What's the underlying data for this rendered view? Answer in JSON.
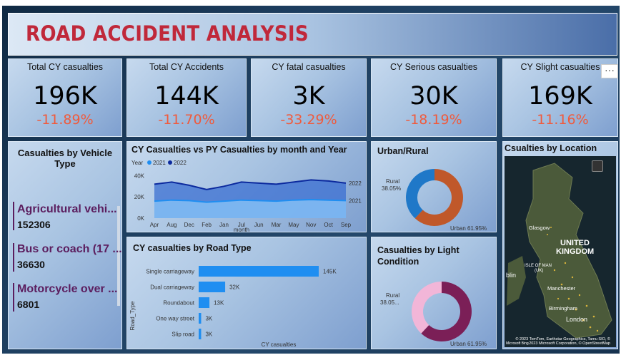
{
  "title": "ROAD ACCIDENT ANALYSIS",
  "kpis": [
    {
      "label": "Total CY casualties",
      "value": "196K",
      "change": "-11.89%"
    },
    {
      "label": "Total CY Accidents",
      "value": "144K",
      "change": "-11.70%"
    },
    {
      "label": "CY fatal casualties",
      "value": "3K",
      "change": "-33.29%"
    },
    {
      "label": "CY Serious casualties",
      "value": "30K",
      "change": "-18.19%"
    },
    {
      "label": "CY Slight casualties",
      "value": "169K",
      "change": "-11.16%"
    }
  ],
  "vehicle": {
    "title": "Casualties by Vehicle Type",
    "items": [
      {
        "name": "Agricultural vehi...",
        "value": "152306"
      },
      {
        "name": "Bus or coach (17 ...",
        "value": "36630"
      },
      {
        "name": "Motorcycle over ...",
        "value": "6801"
      }
    ]
  },
  "line": {
    "title": "CY Casualties vs PY Casualties by month and Year",
    "legend_title": "Year",
    "legend": [
      "2021",
      "2022"
    ],
    "xlabel": "month"
  },
  "urban": {
    "title": "Urban/Rural",
    "rural": "Rural\n38.05%",
    "urban": "Urban 61.95%"
  },
  "light": {
    "title": "Casualties by Light Condition",
    "rural": "Rural\n38.05...",
    "urban": "Urban 61.95%"
  },
  "road": {
    "title": "CY casualties by Road Type",
    "ylabel": "Road_Type",
    "xlabel": "CY casualties"
  },
  "map": {
    "title": "Csualties by Location",
    "labels": [
      "UNITED",
      "KINGDOM",
      "Glasgow",
      "ISLE OF MAN",
      "(UK)",
      "Manchester",
      "Birmingham",
      "London",
      "blin"
    ],
    "copyright": "© 2023 TomTom, Earthstar Geographics, Tamu SIO, © 2023 Microsoft Corporation, © OpenStreetMap",
    "brand": "Microsoft Bing"
  },
  "colors": {
    "y2021": "#1f8ef1",
    "y2022": "#0c2a9e",
    "urban": "#c0582a",
    "rural": "#1f78c8",
    "light_dark": "#7b1f57",
    "light_light": "#f2b6d8",
    "bar": "#1f8ef1",
    "kpi_change": "#f05a3c"
  },
  "chart_data": [
    {
      "type": "area",
      "title": "CY Casualties vs PY Casualties by month and Year",
      "xlabel": "month",
      "x": [
        "Apr",
        "Aug",
        "Dec",
        "Feb",
        "Jan",
        "Jul",
        "Jun",
        "Mar",
        "May",
        "Nov",
        "Oct",
        "Sep"
      ],
      "yticks": [
        "0K",
        "20K",
        "40K"
      ],
      "ylim": [
        0,
        45000
      ],
      "series": [
        {
          "name": "2022",
          "values": [
            32000,
            34000,
            31000,
            27000,
            30000,
            34000,
            33000,
            32000,
            34000,
            36000,
            35000,
            33000
          ]
        },
        {
          "name": "2021",
          "values": [
            16000,
            17000,
            16500,
            15000,
            16000,
            17000,
            16500,
            16000,
            17000,
            17500,
            17000,
            16500
          ]
        }
      ],
      "end_labels": [
        "2022",
        "2021"
      ]
    },
    {
      "type": "bar",
      "title": "CY casualties by Road Type",
      "categories": [
        "Single carriageway",
        "Dual carriageway",
        "Roundabout",
        "One way street",
        "Slip road"
      ],
      "values": [
        145000,
        32000,
        13000,
        3000,
        3000
      ],
      "labels": [
        "145K",
        "32K",
        "13K",
        "3K",
        "3K"
      ],
      "xlabel": "CY casualties",
      "ylabel": "Road_Type"
    },
    {
      "type": "pie",
      "title": "Urban/Rural",
      "categories": [
        "Urban",
        "Rural"
      ],
      "values": [
        61.95,
        38.05
      ]
    },
    {
      "type": "pie",
      "title": "Casualties by Light Condition",
      "categories": [
        "Urban",
        "Rural"
      ],
      "values": [
        61.95,
        38.05
      ]
    }
  ]
}
